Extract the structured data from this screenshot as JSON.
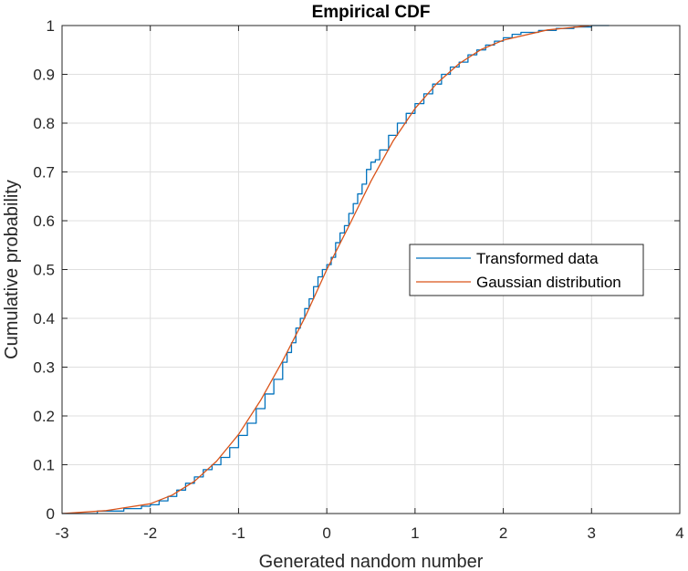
{
  "chart_data": {
    "type": "line",
    "title": "Empirical CDF",
    "xlabel": "Generated nandom number",
    "ylabel": "Cumulative probability",
    "xlim": [
      -3,
      4
    ],
    "ylim": [
      0,
      1
    ],
    "xticks": [
      -3,
      -2,
      -1,
      0,
      1,
      2,
      3,
      4
    ],
    "yticks": [
      0,
      0.1,
      0.2,
      0.3,
      0.4,
      0.5,
      0.6,
      0.7,
      0.8,
      0.9,
      1
    ],
    "xtick_labels": [
      "-3",
      "-2",
      "-1",
      "0",
      "1",
      "2",
      "3",
      "4"
    ],
    "ytick_labels": [
      "0",
      "0.1",
      "0.2",
      "0.3",
      "0.4",
      "0.5",
      "0.6",
      "0.7",
      "0.8",
      "0.9",
      "1"
    ],
    "grid": true,
    "legend_position": "right",
    "series": [
      {
        "name": "Transformed data",
        "color": "#0072BD",
        "style": "stairs",
        "x": [
          -3.0,
          -2.6,
          -2.3,
          -2.1,
          -2.0,
          -1.9,
          -1.8,
          -1.7,
          -1.6,
          -1.5,
          -1.4,
          -1.3,
          -1.2,
          -1.1,
          -1.0,
          -0.9,
          -0.8,
          -0.7,
          -0.6,
          -0.5,
          -0.45,
          -0.4,
          -0.35,
          -0.3,
          -0.25,
          -0.2,
          -0.15,
          -0.1,
          -0.05,
          0.0,
          0.05,
          0.1,
          0.15,
          0.2,
          0.25,
          0.3,
          0.35,
          0.4,
          0.45,
          0.5,
          0.55,
          0.6,
          0.7,
          0.8,
          0.9,
          1.0,
          1.1,
          1.2,
          1.3,
          1.4,
          1.5,
          1.6,
          1.7,
          1.8,
          1.9,
          2.0,
          2.1,
          2.2,
          2.4,
          2.6,
          2.8,
          3.0,
          3.2
        ],
        "y": [
          0.0,
          0.005,
          0.01,
          0.015,
          0.018,
          0.026,
          0.035,
          0.048,
          0.062,
          0.075,
          0.09,
          0.1,
          0.115,
          0.135,
          0.16,
          0.185,
          0.215,
          0.245,
          0.275,
          0.31,
          0.33,
          0.35,
          0.38,
          0.4,
          0.42,
          0.44,
          0.465,
          0.485,
          0.5,
          0.51,
          0.525,
          0.555,
          0.575,
          0.59,
          0.615,
          0.635,
          0.655,
          0.675,
          0.705,
          0.72,
          0.725,
          0.745,
          0.775,
          0.8,
          0.82,
          0.84,
          0.86,
          0.88,
          0.9,
          0.915,
          0.925,
          0.94,
          0.95,
          0.96,
          0.968,
          0.975,
          0.982,
          0.986,
          0.99,
          0.994,
          0.997,
          1.0,
          1.0
        ]
      },
      {
        "name": "Gaussian distribution",
        "color": "#D95319",
        "style": "line",
        "x": [
          -3.0,
          -2.5,
          -2.0,
          -1.75,
          -1.5,
          -1.25,
          -1.0,
          -0.75,
          -0.5,
          -0.25,
          0.0,
          0.25,
          0.5,
          0.75,
          1.0,
          1.25,
          1.5,
          1.75,
          2.0,
          2.5,
          3.0
        ],
        "y": [
          0.0,
          0.006,
          0.02,
          0.038,
          0.066,
          0.107,
          0.162,
          0.232,
          0.313,
          0.401,
          0.5,
          0.589,
          0.681,
          0.763,
          0.83,
          0.882,
          0.922,
          0.951,
          0.97,
          0.991,
          1.0
        ]
      }
    ]
  }
}
